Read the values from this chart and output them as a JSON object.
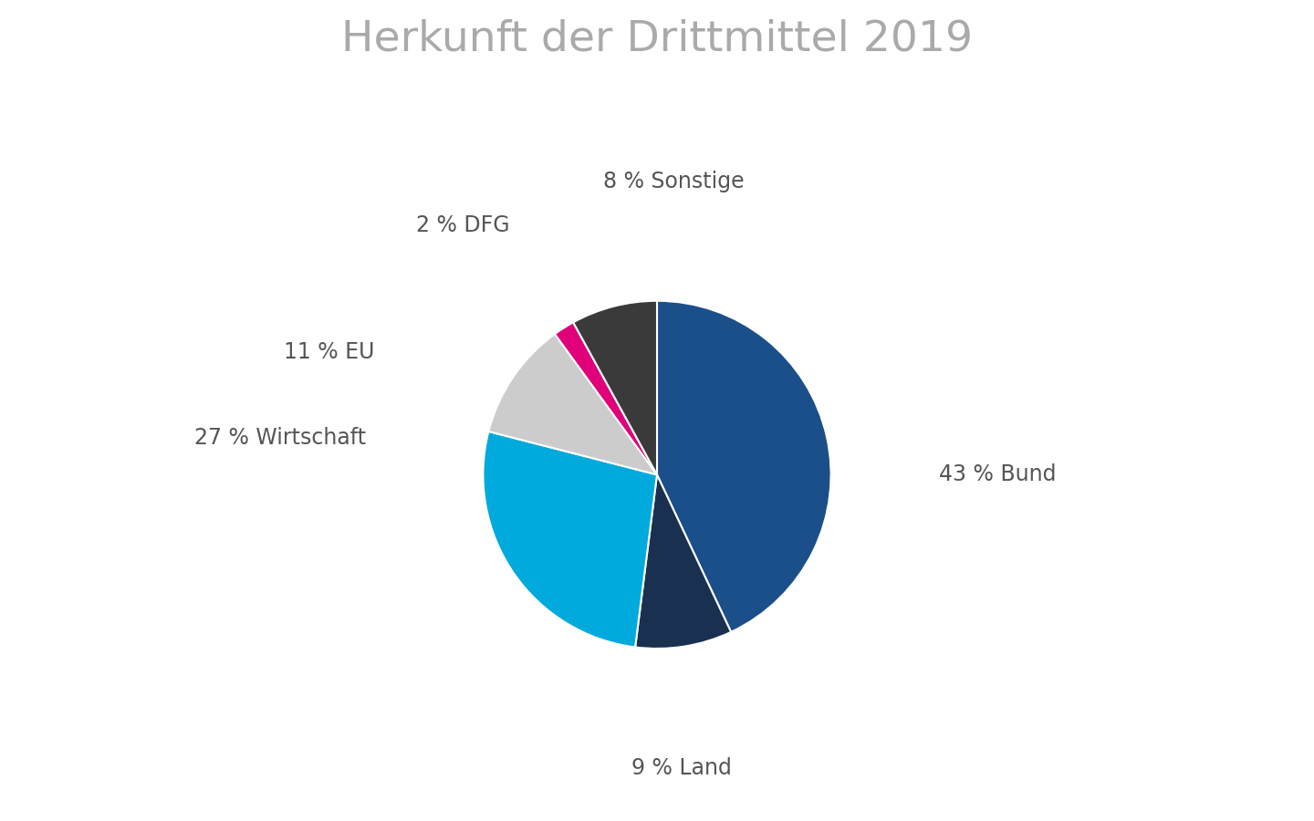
{
  "title": "Herkunft der Drittmittel 2019",
  "title_fontsize": 34,
  "title_color": "#aaaaaa",
  "slices": [
    {
      "label": "43 % Bund",
      "value": 43,
      "color": "#1a4f8a"
    },
    {
      "label": "9 % Land",
      "value": 9,
      "color": "#1a3050"
    },
    {
      "label": "27 % Wirtschaft",
      "value": 27,
      "color": "#00aadd"
    },
    {
      "label": "11 % EU",
      "value": 11,
      "color": "#cccccc"
    },
    {
      "label": "2 % DFG",
      "value": 2,
      "color": "#e0007a"
    },
    {
      "label": "8 % Sonstige",
      "value": 8,
      "color": "#3a3a3a"
    }
  ],
  "label_fontsize": 17,
  "label_color": "#555555",
  "background_color": "#ffffff",
  "label_positions": {
    "43 % Bund": [
      1.38,
      0.0,
      "left",
      "center"
    ],
    "9 % Land": [
      0.12,
      -1.38,
      "center",
      "top"
    ],
    "27 % Wirtschaft": [
      -1.42,
      0.18,
      "right",
      "center"
    ],
    "11 % EU": [
      -1.38,
      0.6,
      "right",
      "center"
    ],
    "2 % DFG": [
      -0.72,
      1.22,
      "right",
      "center"
    ],
    "8 % Sonstige": [
      0.08,
      1.38,
      "center",
      "bottom"
    ]
  }
}
